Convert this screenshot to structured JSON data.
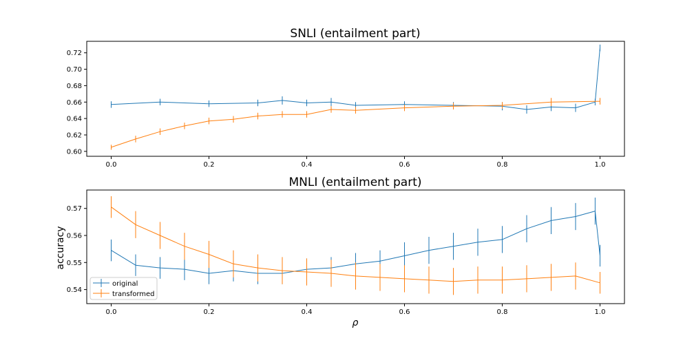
{
  "figure": {
    "colors": {
      "original": "#1f77b4",
      "transformed": "#ff7f0e"
    }
  },
  "chart_data": [
    {
      "type": "line",
      "title": "SNLI (entailment part)",
      "xlabel": "",
      "ylabel": "",
      "xlim": [
        -0.05,
        1.05
      ],
      "ylim": [
        0.594,
        0.734
      ],
      "xticks": [
        0.0,
        0.2,
        0.4,
        0.6,
        0.8,
        1.0
      ],
      "xtick_labels": [
        "0.0",
        "0.2",
        "0.4",
        "0.6",
        "0.8",
        "1.0"
      ],
      "yticks": [
        0.6,
        0.62,
        0.64,
        0.66,
        0.68,
        0.7,
        0.72
      ],
      "ytick_labels": [
        "0.60",
        "0.62",
        "0.64",
        "0.66",
        "0.68",
        "0.70",
        "0.72"
      ],
      "grid": false,
      "series": [
        {
          "name": "original",
          "color": "#1f77b4",
          "x": [
            0.0,
            0.1,
            0.2,
            0.3,
            0.35,
            0.4,
            0.45,
            0.5,
            0.6,
            0.7,
            0.8,
            0.85,
            0.9,
            0.95,
            0.99,
            1.0
          ],
          "y": [
            0.657,
            0.66,
            0.658,
            0.659,
            0.662,
            0.659,
            0.66,
            0.656,
            0.657,
            0.656,
            0.655,
            0.651,
            0.654,
            0.653,
            0.66,
            0.726
          ],
          "err": [
            0.004,
            0.004,
            0.004,
            0.004,
            0.005,
            0.004,
            0.005,
            0.004,
            0.004,
            0.004,
            0.005,
            0.005,
            0.005,
            0.005,
            0.004,
            0.004
          ]
        },
        {
          "name": "transformed",
          "color": "#ff7f0e",
          "x": [
            0.0,
            0.05,
            0.1,
            0.15,
            0.2,
            0.25,
            0.3,
            0.35,
            0.4,
            0.45,
            0.5,
            0.6,
            0.7,
            0.8,
            0.9,
            1.0
          ],
          "y": [
            0.605,
            0.615,
            0.624,
            0.631,
            0.637,
            0.639,
            0.643,
            0.645,
            0.645,
            0.651,
            0.65,
            0.653,
            0.655,
            0.656,
            0.66,
            0.661
          ],
          "err": [
            0.003,
            0.004,
            0.004,
            0.004,
            0.004,
            0.004,
            0.004,
            0.004,
            0.004,
            0.004,
            0.004,
            0.004,
            0.004,
            0.004,
            0.005,
            0.004
          ]
        }
      ]
    },
    {
      "type": "line",
      "title": "MNLI (entailment part)",
      "xlabel": "ρ",
      "ylabel": "accuracy",
      "xlim": [
        -0.05,
        1.05
      ],
      "ylim": [
        0.5348,
        0.5768
      ],
      "xticks": [
        0.0,
        0.2,
        0.4,
        0.6,
        0.8,
        1.0
      ],
      "xtick_labels": [
        "0.0",
        "0.2",
        "0.4",
        "0.6",
        "0.8",
        "1.0"
      ],
      "yticks": [
        0.54,
        0.55,
        0.56,
        0.57
      ],
      "ytick_labels": [
        "0.54",
        "0.55",
        "0.56",
        "0.57"
      ],
      "grid": false,
      "legend": {
        "position": "lower-left",
        "entries": [
          "original",
          "transformed"
        ]
      },
      "series": [
        {
          "name": "original",
          "color": "#1f77b4",
          "x": [
            0.0,
            0.05,
            0.1,
            0.15,
            0.2,
            0.25,
            0.3,
            0.35,
            0.4,
            0.45,
            0.5,
            0.55,
            0.6,
            0.65,
            0.7,
            0.75,
            0.8,
            0.85,
            0.9,
            0.95,
            0.99,
            1.0
          ],
          "y": [
            0.5545,
            0.549,
            0.548,
            0.5475,
            0.546,
            0.547,
            0.546,
            0.546,
            0.5475,
            0.548,
            0.5495,
            0.5505,
            0.5525,
            0.5545,
            0.556,
            0.5575,
            0.5585,
            0.5625,
            0.5655,
            0.567,
            0.569,
            0.5525
          ],
          "err": [
            0.004,
            0.004,
            0.004,
            0.004,
            0.004,
            0.004,
            0.004,
            0.004,
            0.004,
            0.004,
            0.004,
            0.004,
            0.005,
            0.005,
            0.005,
            0.005,
            0.005,
            0.005,
            0.005,
            0.005,
            0.005,
            0.004
          ]
        },
        {
          "name": "transformed",
          "color": "#ff7f0e",
          "x": [
            0.0,
            0.05,
            0.1,
            0.15,
            0.2,
            0.25,
            0.3,
            0.35,
            0.4,
            0.45,
            0.5,
            0.55,
            0.6,
            0.65,
            0.7,
            0.75,
            0.8,
            0.85,
            0.9,
            0.95,
            1.0
          ],
          "y": [
            0.5705,
            0.564,
            0.56,
            0.556,
            0.553,
            0.5495,
            0.548,
            0.547,
            0.5465,
            0.546,
            0.545,
            0.5445,
            0.544,
            0.5435,
            0.543,
            0.5435,
            0.5435,
            0.544,
            0.5445,
            0.545,
            0.5425
          ],
          "err": [
            0.004,
            0.005,
            0.005,
            0.005,
            0.005,
            0.005,
            0.005,
            0.005,
            0.005,
            0.005,
            0.005,
            0.005,
            0.005,
            0.005,
            0.005,
            0.005,
            0.005,
            0.005,
            0.005,
            0.005,
            0.004
          ]
        }
      ]
    }
  ]
}
